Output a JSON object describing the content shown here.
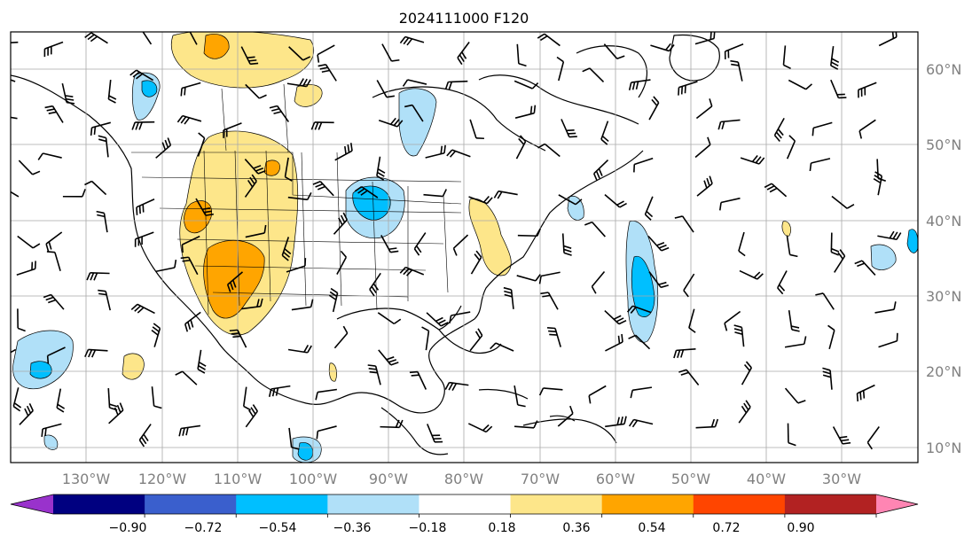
{
  "title": "2024111000 F120",
  "map": {
    "lon_range": [
      -135,
      -15
    ],
    "lat_range": [
      8,
      65
    ],
    "gridlines": true,
    "lon_labels": [
      "130°W",
      "120°W",
      "110°W",
      "100°W",
      "90°W",
      "80°W",
      "70°W",
      "60°W",
      "50°W",
      "40°W",
      "30°W"
    ],
    "lat_labels": [
      "60°N",
      "50°N",
      "40°N",
      "30°N",
      "20°N",
      "10°N"
    ],
    "features": [
      "coastlines",
      "country-borders",
      "us-state-borders",
      "wind-barbs",
      "filled-contours"
    ]
  },
  "colorbar": {
    "tick_labels": [
      "−0.90",
      "−0.72",
      "−0.54",
      "−0.36",
      "−0.18",
      "0.18",
      "0.36",
      "0.54",
      "0.72",
      "0.90"
    ],
    "colors": [
      "#9932cc",
      "#000080",
      "#3a5fcd",
      "#00bfff",
      "#b0e0f8",
      "#ffffff",
      "#fde68a",
      "#ffa500",
      "#ff4500",
      "#b22222",
      "#ff85b3"
    ],
    "extend": "both"
  },
  "contour_colors": {
    "pos1": "#fde68a",
    "pos2": "#ffa500",
    "neg1": "#b0e0f8",
    "neg2": "#00bfff"
  }
}
